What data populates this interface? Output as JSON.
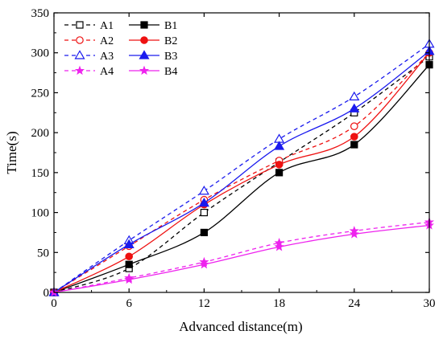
{
  "chart_data": {
    "type": "line",
    "xlabel": "Advanced distance(m)",
    "ylabel": "Time(s)",
    "xlim": [
      0,
      30
    ],
    "ylim": [
      0,
      350
    ],
    "xticks": [
      0,
      6,
      12,
      18,
      24,
      30
    ],
    "yticks": [
      0,
      50,
      100,
      150,
      200,
      250,
      300,
      350
    ],
    "grid": false,
    "legend_position": "top-left",
    "x": [
      0,
      6,
      12,
      18,
      24,
      30
    ],
    "series": [
      {
        "name": "A1",
        "values": [
          0,
          30,
          100,
          163,
          225,
          295
        ],
        "color": "#000000",
        "dash": true,
        "marker": "square-open"
      },
      {
        "name": "A2",
        "values": [
          0,
          58,
          116,
          165,
          208,
          300
        ],
        "color": "#ee1111",
        "dash": true,
        "marker": "circle-open"
      },
      {
        "name": "A3",
        "values": [
          0,
          65,
          127,
          192,
          245,
          311
        ],
        "color": "#1a1aee",
        "dash": true,
        "marker": "triangle-open"
      },
      {
        "name": "A4",
        "values": [
          0,
          18,
          38,
          62,
          77,
          88
        ],
        "color": "#ee22ee",
        "dash": true,
        "marker": "star"
      },
      {
        "name": "B1",
        "values": [
          0,
          35,
          75,
          150,
          185,
          285
        ],
        "color": "#000000",
        "dash": false,
        "marker": "square-filled"
      },
      {
        "name": "B2",
        "values": [
          0,
          45,
          110,
          160,
          195,
          300
        ],
        "color": "#ee1111",
        "dash": false,
        "marker": "circle-filled"
      },
      {
        "name": "B3",
        "values": [
          0,
          60,
          112,
          183,
          230,
          302
        ],
        "color": "#1a1aee",
        "dash": false,
        "marker": "triangle-filled"
      },
      {
        "name": "B4",
        "values": [
          0,
          16,
          35,
          57,
          73,
          84
        ],
        "color": "#ee22ee",
        "dash": false,
        "marker": "star"
      }
    ]
  }
}
